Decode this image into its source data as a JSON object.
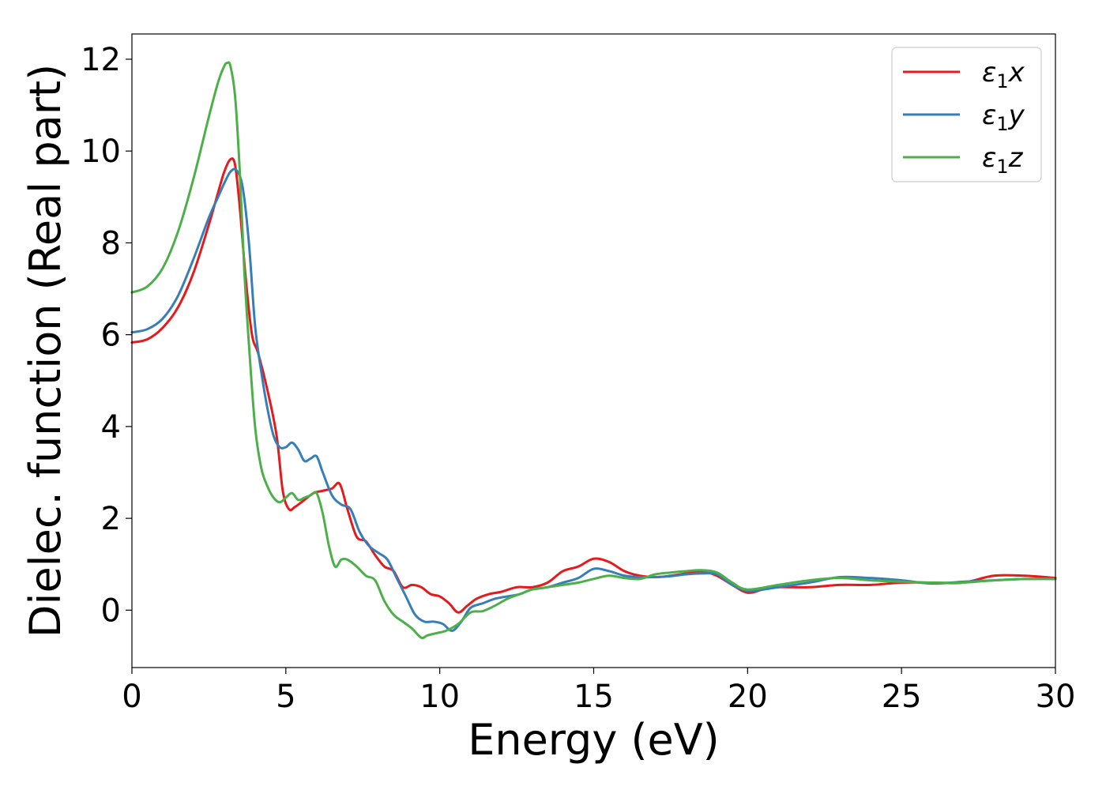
{
  "chart_data": {
    "type": "line",
    "title": "",
    "xlabel": "Energy (eV)",
    "ylabel": "Dielec. function (Real part)",
    "xlim": [
      0,
      30
    ],
    "ylim": [
      -1.25,
      12.55
    ],
    "xticks": [
      0,
      5,
      10,
      15,
      20,
      25,
      30
    ],
    "yticks": [
      0,
      2,
      4,
      6,
      8,
      10,
      12
    ],
    "xtick_labels": [
      "0",
      "5",
      "10",
      "15",
      "20",
      "25",
      "30"
    ],
    "ytick_labels": [
      "0",
      "2",
      "4",
      "6",
      "8",
      "10",
      "12"
    ],
    "grid": false,
    "legend_position": "top-right",
    "series": [
      {
        "name": "ε₁x",
        "legend_main": "ε",
        "legend_sub": "1",
        "legend_var": "x",
        "color": "#e41a1c",
        "x": [
          0,
          0.5,
          1.0,
          1.5,
          2.0,
          2.5,
          2.8,
          3.0,
          3.2,
          3.35,
          3.5,
          3.7,
          3.9,
          4.1,
          4.4,
          4.7,
          4.9,
          5.1,
          5.3,
          5.6,
          5.9,
          6.2,
          6.5,
          6.75,
          7.0,
          7.3,
          7.6,
          7.9,
          8.2,
          8.5,
          8.8,
          9.1,
          9.4,
          9.7,
          10.0,
          10.3,
          10.6,
          10.9,
          11.2,
          11.6,
          12.0,
          12.5,
          13.0,
          13.5,
          14.0,
          14.5,
          15.0,
          15.5,
          16.0,
          16.5,
          17.0,
          17.5,
          18.0,
          18.5,
          19.0,
          19.5,
          20.0,
          20.5,
          21.0,
          22.0,
          23.0,
          24.0,
          25.0,
          26.0,
          27.0,
          28.0,
          29.0,
          30.0
        ],
        "values": [
          5.83,
          5.9,
          6.15,
          6.6,
          7.35,
          8.4,
          9.1,
          9.55,
          9.82,
          9.7,
          8.8,
          7.2,
          6.0,
          5.6,
          4.8,
          3.8,
          2.6,
          2.2,
          2.25,
          2.4,
          2.55,
          2.6,
          2.65,
          2.75,
          2.2,
          1.6,
          1.5,
          1.2,
          0.95,
          0.85,
          0.5,
          0.55,
          0.5,
          0.35,
          0.3,
          0.15,
          -0.05,
          0.1,
          0.25,
          0.35,
          0.4,
          0.5,
          0.5,
          0.6,
          0.85,
          0.95,
          1.12,
          1.05,
          0.85,
          0.75,
          0.72,
          0.75,
          0.8,
          0.85,
          0.75,
          0.55,
          0.38,
          0.45,
          0.5,
          0.5,
          0.55,
          0.55,
          0.6,
          0.6,
          0.6,
          0.75,
          0.75,
          0.7
        ]
      },
      {
        "name": "ε₁y",
        "legend_main": "ε",
        "legend_sub": "1",
        "legend_var": "y",
        "color": "#377eb8",
        "x": [
          0,
          0.5,
          1.0,
          1.5,
          2.0,
          2.5,
          2.8,
          3.0,
          3.2,
          3.4,
          3.6,
          3.8,
          4.0,
          4.2,
          4.4,
          4.6,
          4.8,
          5.0,
          5.2,
          5.4,
          5.6,
          5.8,
          6.0,
          6.2,
          6.5,
          6.8,
          7.1,
          7.4,
          7.7,
          8.0,
          8.3,
          8.6,
          8.9,
          9.2,
          9.5,
          9.8,
          10.1,
          10.4,
          10.7,
          11.0,
          11.4,
          11.8,
          12.2,
          12.6,
          13.0,
          13.5,
          14.0,
          14.5,
          15.0,
          15.5,
          16.0,
          16.5,
          17.0,
          17.5,
          18.0,
          18.5,
          19.0,
          19.5,
          20.0,
          20.5,
          21.0,
          22.0,
          23.0,
          24.0,
          25.0,
          26.0,
          27.0,
          28.0,
          29.0,
          30.0
        ],
        "values": [
          6.05,
          6.12,
          6.35,
          6.85,
          7.65,
          8.55,
          9.0,
          9.3,
          9.55,
          9.58,
          9.2,
          8.0,
          6.2,
          5.2,
          4.4,
          3.8,
          3.55,
          3.55,
          3.65,
          3.5,
          3.25,
          3.3,
          3.35,
          3.0,
          2.5,
          2.3,
          2.2,
          1.7,
          1.4,
          1.25,
          1.1,
          0.7,
          0.3,
          -0.1,
          -0.25,
          -0.25,
          -0.3,
          -0.45,
          -0.25,
          0.05,
          0.15,
          0.25,
          0.3,
          0.35,
          0.45,
          0.5,
          0.6,
          0.7,
          0.9,
          0.85,
          0.75,
          0.72,
          0.72,
          0.74,
          0.78,
          0.8,
          0.78,
          0.55,
          0.42,
          0.45,
          0.5,
          0.6,
          0.72,
          0.7,
          0.65,
          0.58,
          0.62,
          0.65,
          0.68,
          0.68
        ]
      },
      {
        "name": "ε₁z",
        "legend_main": "ε",
        "legend_sub": "1",
        "legend_var": "z",
        "color": "#4daf4a",
        "x": [
          0,
          0.5,
          1.0,
          1.5,
          2.0,
          2.5,
          2.8,
          3.0,
          3.1,
          3.2,
          3.35,
          3.5,
          3.65,
          3.8,
          4.0,
          4.2,
          4.4,
          4.6,
          4.8,
          5.0,
          5.2,
          5.4,
          5.6,
          5.8,
          6.0,
          6.2,
          6.4,
          6.6,
          6.8,
          7.0,
          7.3,
          7.6,
          7.9,
          8.2,
          8.5,
          8.8,
          9.1,
          9.4,
          9.6,
          9.9,
          10.2,
          10.6,
          11.0,
          11.4,
          11.8,
          12.2,
          12.6,
          13.0,
          13.5,
          14.0,
          14.5,
          15.0,
          15.5,
          16.0,
          16.5,
          17.0,
          17.5,
          18.0,
          18.5,
          19.0,
          19.5,
          20.0,
          21.0,
          22.0,
          23.0,
          24.0,
          25.0,
          26.0,
          27.0,
          28.0,
          29.0,
          30.0
        ],
        "values": [
          6.92,
          7.05,
          7.45,
          8.25,
          9.4,
          10.75,
          11.5,
          11.85,
          11.92,
          11.85,
          11.2,
          9.6,
          7.4,
          5.8,
          4.0,
          3.1,
          2.7,
          2.45,
          2.35,
          2.45,
          2.55,
          2.4,
          2.45,
          2.5,
          2.55,
          2.1,
          1.4,
          0.95,
          1.1,
          1.1,
          0.95,
          0.75,
          0.65,
          0.2,
          -0.1,
          -0.25,
          -0.4,
          -0.6,
          -0.55,
          -0.5,
          -0.45,
          -0.3,
          -0.05,
          -0.02,
          0.1,
          0.25,
          0.35,
          0.45,
          0.5,
          0.55,
          0.6,
          0.68,
          0.75,
          0.7,
          0.68,
          0.78,
          0.82,
          0.85,
          0.87,
          0.82,
          0.6,
          0.45,
          0.55,
          0.65,
          0.7,
          0.65,
          0.62,
          0.6,
          0.6,
          0.65,
          0.68,
          0.68
        ]
      }
    ]
  }
}
